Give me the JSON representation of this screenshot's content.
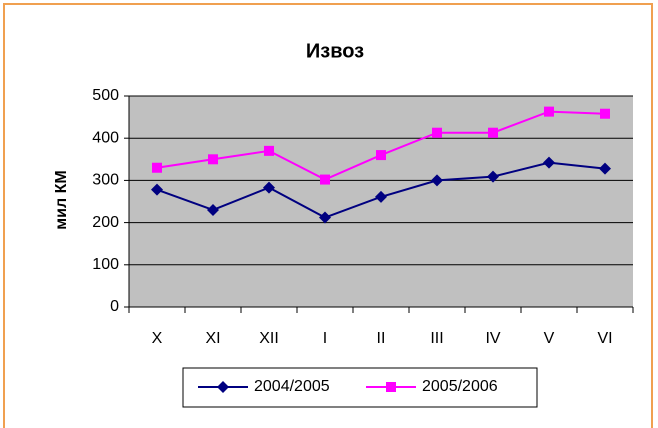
{
  "chart_data": {
    "type": "line",
    "title": "Извоз",
    "y_label": "мил КМ",
    "categories": [
      "X",
      "XI",
      "XII",
      "I",
      "II",
      "III",
      "IV",
      "V",
      "VI"
    ],
    "series": [
      {
        "name": "2004/2005",
        "color": "#000080",
        "marker": "diamond",
        "values": [
          278,
          230,
          283,
          212,
          261,
          300,
          309,
          342,
          328
        ]
      },
      {
        "name": "2005/2006",
        "color": "#ff00ff",
        "marker": "square",
        "values": [
          330,
          350,
          370,
          302,
          360,
          413,
          413,
          463,
          458
        ]
      }
    ],
    "ylim": [
      0,
      500
    ],
    "yticks": [
      0,
      100,
      200,
      300,
      400,
      500
    ],
    "grid": true,
    "legend": "bottom"
  }
}
